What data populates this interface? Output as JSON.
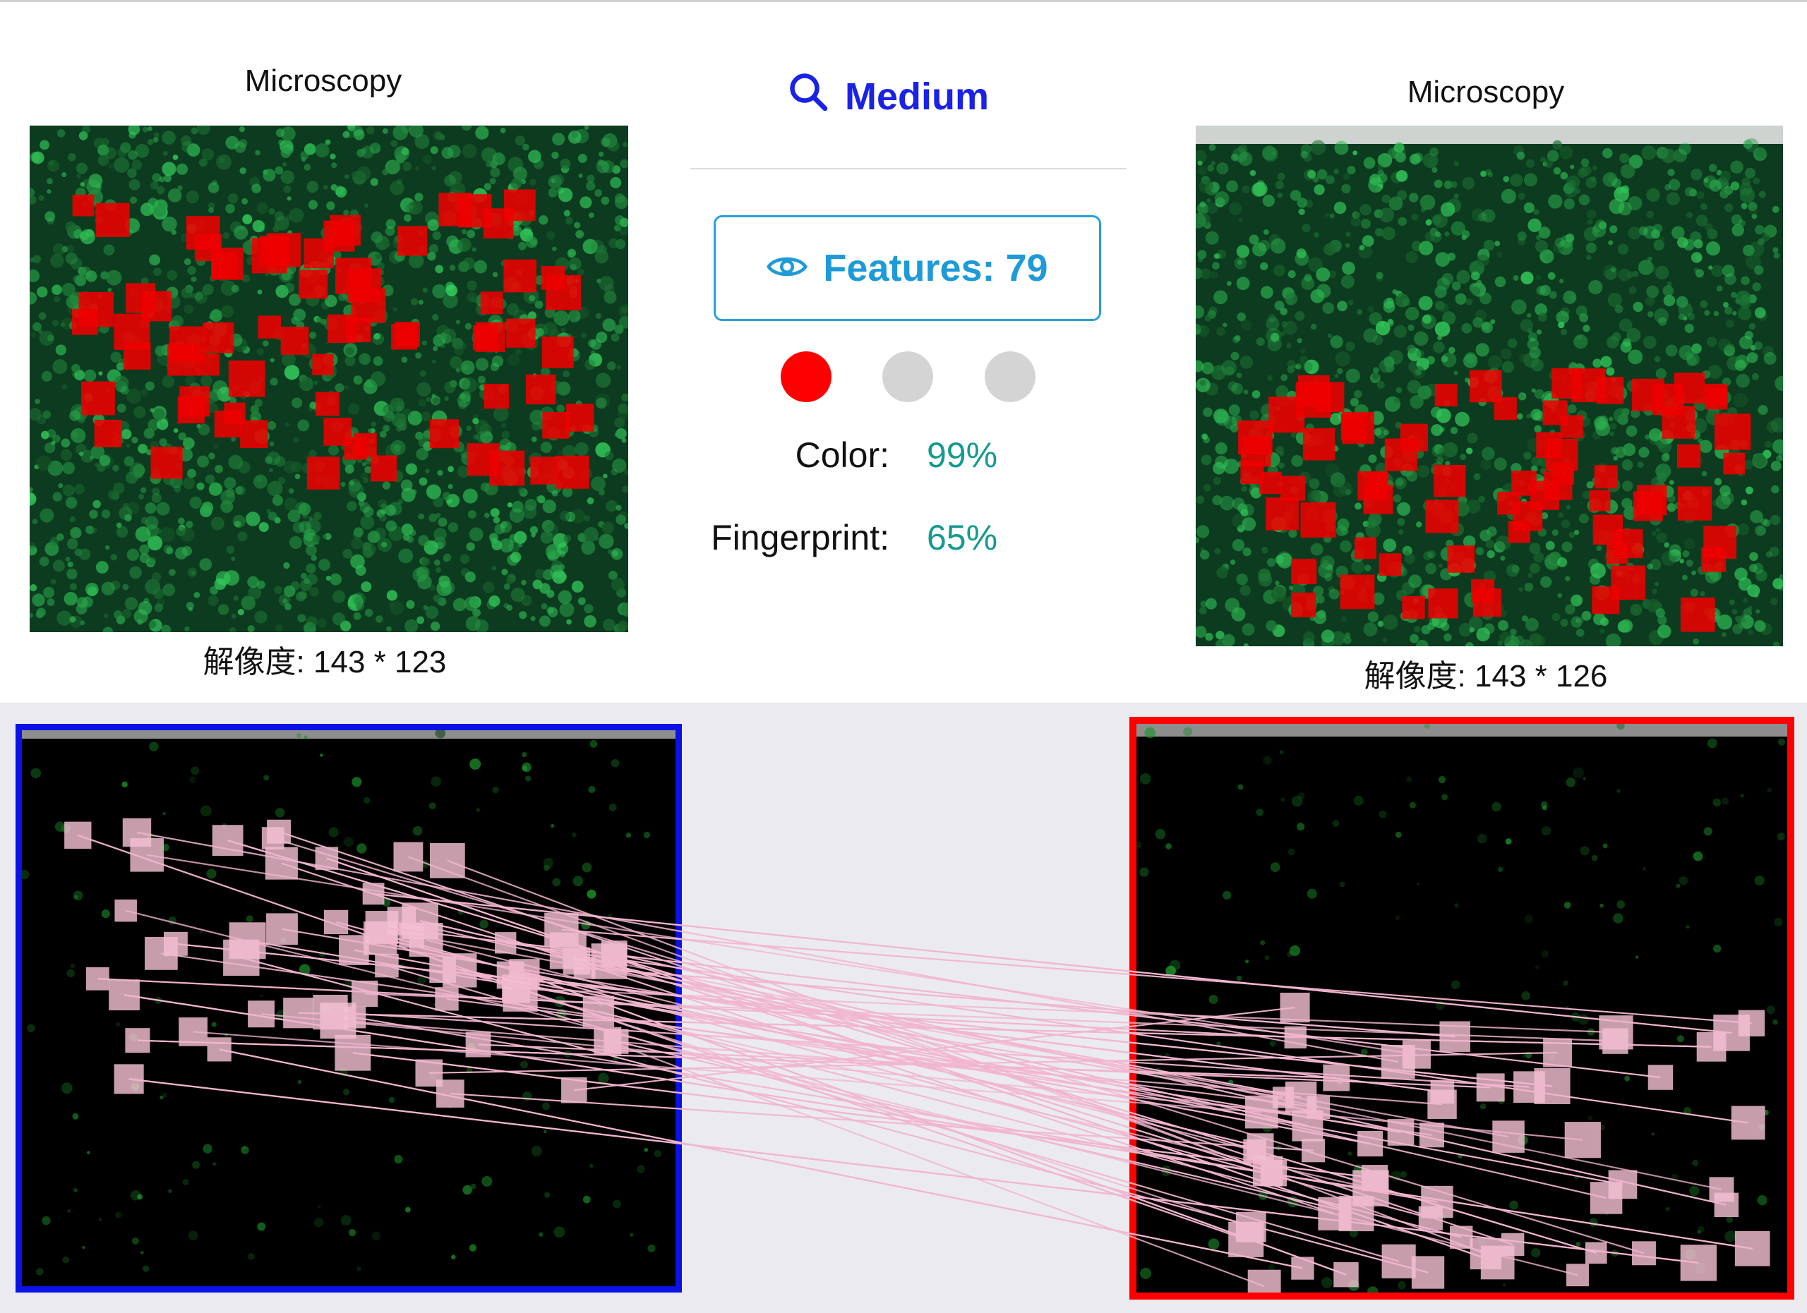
{
  "left_panel": {
    "title": "Microscopy",
    "resolution_text": "解像度: 143 * 123"
  },
  "right_panel": {
    "title": "Microscopy",
    "resolution_text": "解像度: 143 * 126"
  },
  "center": {
    "level_icon": "search-icon",
    "level_label": "Medium",
    "features_icon": "eye-icon",
    "features_label": "Features: 79",
    "indicators": [
      {
        "state": "active",
        "color": "#ff0000"
      },
      {
        "state": "inactive",
        "color": "#d4d4d4"
      },
      {
        "state": "inactive",
        "color": "#d4d4d4"
      }
    ],
    "metrics": [
      {
        "label": "Color:",
        "value": "99%"
      },
      {
        "label": "Fingerprint:",
        "value": "65%"
      }
    ]
  },
  "match_view": {
    "left_frame_color": "#0a12e6",
    "right_frame_color": "#ff0000",
    "match_line_color": "#f2b6cf",
    "keypoint_color": "#f3c0d2"
  },
  "colors": {
    "accent_blue": "#1a22e6",
    "accent_cyan": "#1e9ad8",
    "metric_teal": "#159a8f",
    "feature_red": "#ee0000"
  }
}
